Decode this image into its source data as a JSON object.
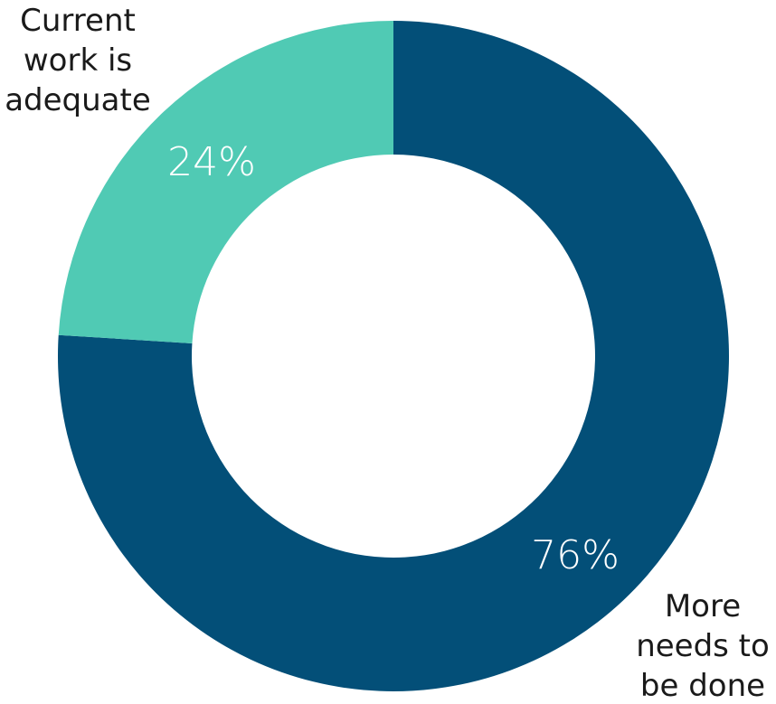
{
  "chart_data": {
    "type": "pie",
    "donut": true,
    "title": "",
    "slices": [
      {
        "category": "More needs to be done",
        "category_lines": [
          "More",
          "needs to",
          "be done"
        ],
        "value": 76,
        "label": "76%",
        "color": "#034f78"
      },
      {
        "category": "Current work is adequate",
        "category_lines": [
          "Current",
          "work is",
          "adequate"
        ],
        "value": 24,
        "label": "24%",
        "color": "#50cab4"
      }
    ]
  }
}
